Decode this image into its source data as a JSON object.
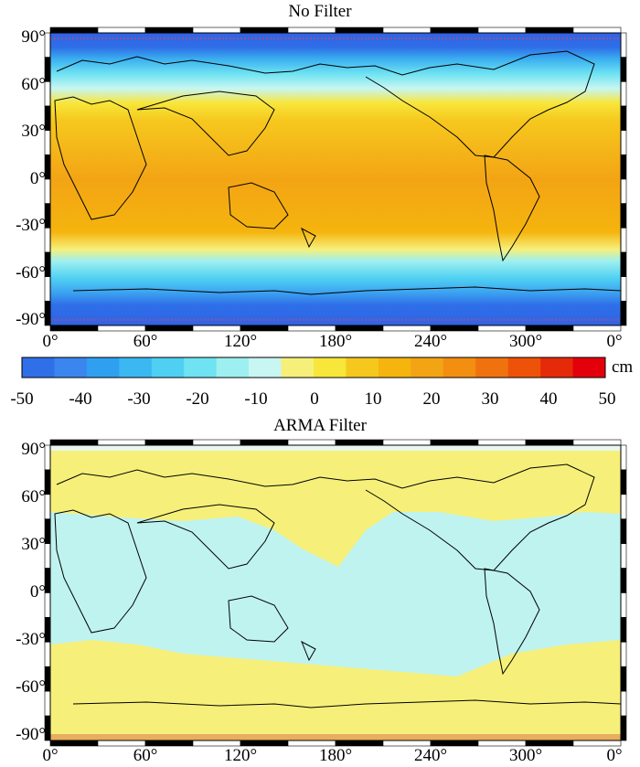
{
  "maps": [
    {
      "title": "No Filter",
      "lat_ticks": [
        "90°",
        "60°",
        "30°",
        "0°",
        "-30°",
        "-60°",
        "-90°"
      ],
      "lon_ticks": [
        "0°",
        "60°",
        "120°",
        "180°",
        "240°",
        "300°",
        "0°"
      ]
    },
    {
      "title": "ARMA Filter",
      "lat_ticks": [
        "90°",
        "60°",
        "30°",
        "0°",
        "-30°",
        "-60°",
        "-90°"
      ],
      "lon_ticks": [
        "0°",
        "60°",
        "120°",
        "180°",
        "240°",
        "300°",
        "0°"
      ]
    }
  ],
  "colorbar": {
    "unit": "cm",
    "ticks": [
      "-50",
      "-40",
      "-30",
      "-20",
      "-10",
      "0",
      "10",
      "20",
      "30",
      "40",
      "50"
    ],
    "colors": [
      "#2f6fe8",
      "#3a86ee",
      "#2fa0f0",
      "#3bb7f2",
      "#4fd0f2",
      "#6fe3f2",
      "#9ef0f0",
      "#c8f6f2",
      "#f6f07a",
      "#f8e63a",
      "#f6c81e",
      "#f5b40e",
      "#f3a414",
      "#f28e10",
      "#f0720e",
      "#ee5208",
      "#e52a0a",
      "#e4000a"
    ]
  }
}
